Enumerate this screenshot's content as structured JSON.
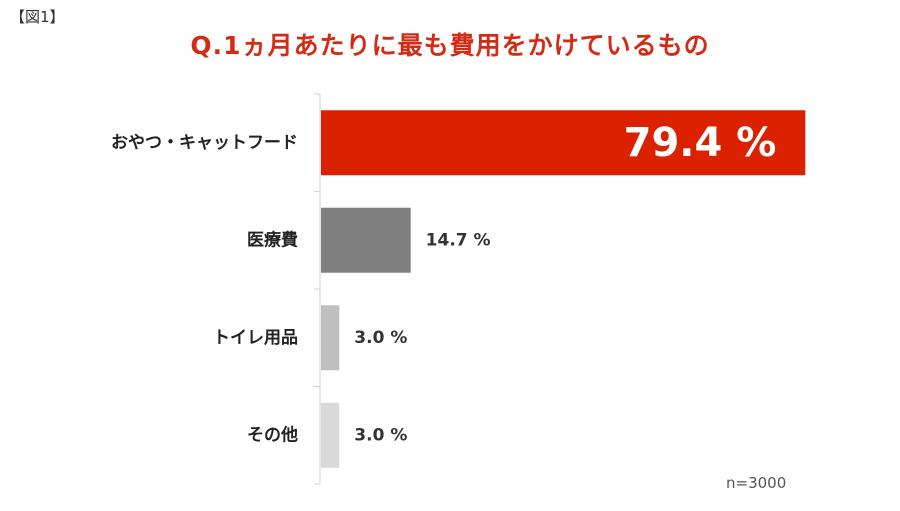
{
  "figure_label": "【図1】",
  "note": "n=3000",
  "chart_data": {
    "type": "bar",
    "orientation": "horizontal",
    "title": "Q.1ヵ月あたりに最も費用をかけているもの",
    "categories": [
      "おやつ・キャットフード",
      "医療費",
      "トイレ用品",
      "その他"
    ],
    "values": [
      79.4,
      14.7,
      3.0,
      3.0
    ],
    "value_labels": [
      "79.4 %",
      "14.7 %",
      "3.0 %",
      "3.0 %"
    ],
    "colors": [
      "#dc2100",
      "#7f7f7f",
      "#bfbfbf",
      "#d9d9d9"
    ],
    "xlim": [
      0,
      100
    ],
    "grid": false,
    "legend": "none"
  }
}
